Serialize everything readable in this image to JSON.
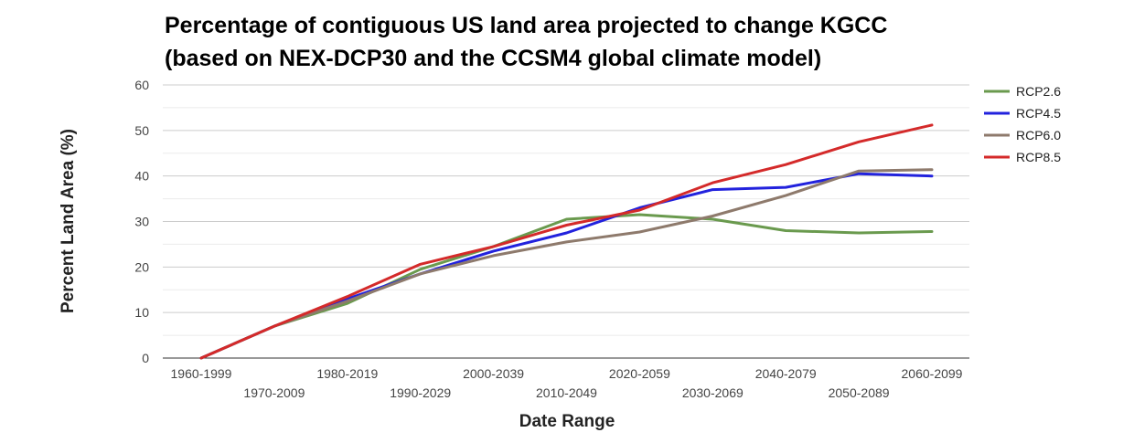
{
  "chart_data": {
    "type": "line",
    "title": [
      "Percentage of contiguous US land area projected to change KGCC",
      "(based on NEX-DCP30 and the CCSM4 global climate model)"
    ],
    "xlabel": "Date Range",
    "ylabel": "Percent Land Area (%)",
    "ylim": [
      0,
      60
    ],
    "yticks": [
      "0",
      "10",
      "20",
      "30",
      "40",
      "50",
      "60"
    ],
    "grid": true,
    "legend_position": "right",
    "categories": [
      "1960-1999",
      "1970-2009",
      "1980-2019",
      "1990-2029",
      "2000-2039",
      "2010-2049",
      "2020-2059",
      "2030-2069",
      "2040-2079",
      "2050-2089",
      "2060-2099"
    ],
    "series": [
      {
        "name": "RCP2.6",
        "color": "#6a9a4e",
        "values": [
          0,
          7,
          12,
          19.5,
          24.5,
          30.5,
          31.5,
          30.5,
          28,
          27.5,
          27.8
        ]
      },
      {
        "name": "RCP4.5",
        "color": "#2222dd",
        "values": [
          0,
          7,
          13,
          18.5,
          23.5,
          27.5,
          33,
          37,
          37.5,
          40.5,
          40
        ]
      },
      {
        "name": "RCP6.0",
        "color": "#8e7a6c",
        "values": [
          0,
          7,
          12.5,
          18.5,
          22.5,
          25.5,
          27.7,
          31.2,
          35.7,
          41.1,
          41.4
        ]
      },
      {
        "name": "RCP8.5",
        "color": "#d42a2a",
        "values": [
          0,
          7,
          13.5,
          20.6,
          24.5,
          29.2,
          32.5,
          38.5,
          42.5,
          47.5,
          51.2
        ]
      }
    ]
  }
}
